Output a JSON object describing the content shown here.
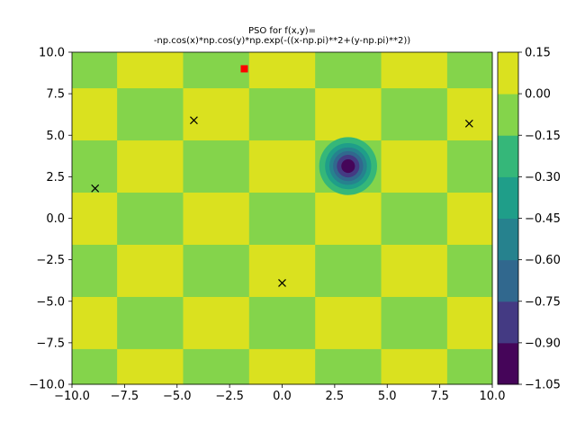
{
  "chart_data": {
    "type": "heatmap",
    "subtype": "filled-contour",
    "title": "PSO for f(x,y)=\n-np.cos(x)*np.cos(y)*np.exp(-((x-np.pi)**2+(y-np.pi)**2))",
    "xlabel": "",
    "ylabel": "",
    "xlim": [
      -10.0,
      10.0
    ],
    "ylim": [
      -10.0,
      10.0
    ],
    "grid": false,
    "x_ticks": [
      "−10.0",
      "−7.5",
      "−5.0",
      "−2.5",
      "0.0",
      "2.5",
      "5.0",
      "7.5",
      "10.0"
    ],
    "y_ticks": [
      "10.0",
      "7.5",
      "5.0",
      "2.5",
      "0.0",
      "−2.5",
      "−5.0",
      "−7.5",
      "−10.0"
    ],
    "colorbar": {
      "levels": [
        -1.05,
        -0.9,
        -0.75,
        -0.6,
        -0.45,
        -0.3,
        -0.15,
        0.0,
        0.15
      ],
      "tick_labels": [
        "0.15",
        "0.00",
        "−0.15",
        "−0.30",
        "−0.45",
        "−0.60",
        "−0.75",
        "−0.90",
        "−1.05"
      ],
      "colors": [
        "#450559",
        "#443a83",
        "#31688e",
        "#26828e",
        "#1f9e89",
        "#35b779",
        "#84d44b",
        "#dae11f"
      ]
    },
    "cell_colors": {
      "green": "#84d44b",
      "yellow": "#dae11f"
    },
    "minimum": {
      "x": 3.14,
      "y": 3.14,
      "value": -1.0
    },
    "particles": {
      "marker": "x",
      "color": "#000000",
      "points": [
        {
          "x": -8.9,
          "y": 1.8
        },
        {
          "x": -4.2,
          "y": 5.9
        },
        {
          "x": 0.0,
          "y": -3.9
        },
        {
          "x": 8.9,
          "y": 5.7
        }
      ]
    },
    "global_best": {
      "marker": "square",
      "color": "#ff0000",
      "x": -1.8,
      "y": 9.0
    }
  }
}
